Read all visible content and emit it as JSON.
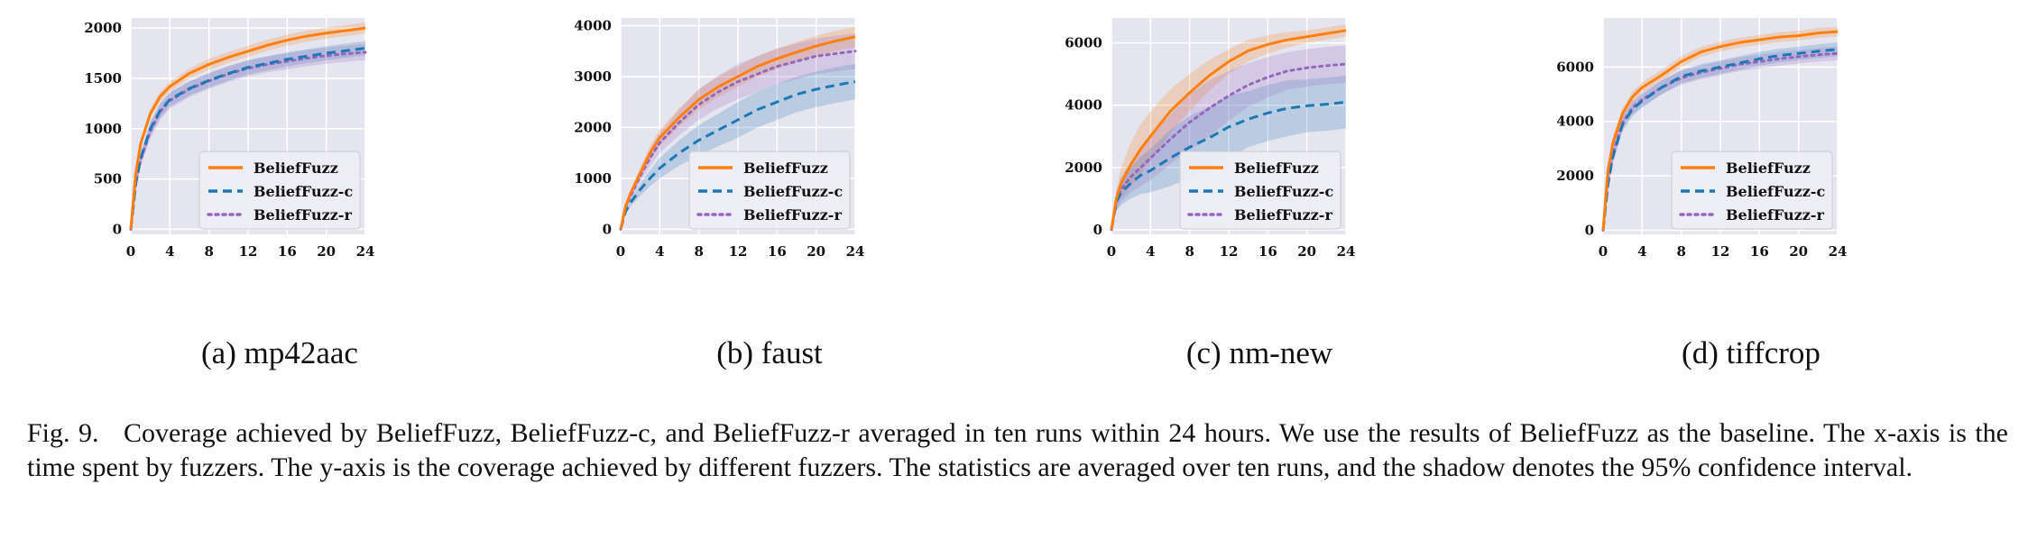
{
  "colors": {
    "plot_bg": "#e5e5ef",
    "grid": "#ffffff",
    "series": [
      "#ff7f0e",
      "#1f77b4",
      "#9467bd"
    ]
  },
  "legend": [
    "BeliefFuzz",
    "BeliefFuzz-c",
    "BeliefFuzz-r"
  ],
  "chart_data": [
    {
      "type": "line",
      "xlim": [
        0,
        24
      ],
      "ylim": [
        -50,
        2100
      ],
      "xticks": [
        0,
        4,
        8,
        12,
        16,
        20,
        24
      ],
      "yticks": [
        0,
        500,
        1000,
        1500,
        2000
      ],
      "xtick_labels": [
        "0",
        "4",
        "8",
        "12",
        "16",
        "20",
        "24"
      ],
      "ytick_labels": [
        "0",
        "500",
        "1000",
        "1500",
        "2000"
      ],
      "x": [
        0,
        0.5,
        1,
        2,
        3,
        4,
        6,
        8,
        10,
        12,
        14,
        16,
        18,
        20,
        22,
        24
      ],
      "legend_position": "lower-right",
      "grid": true,
      "series": [
        {
          "name": "BeliefFuzz",
          "values": [
            0,
            550,
            850,
            1150,
            1320,
            1420,
            1550,
            1640,
            1710,
            1770,
            1830,
            1880,
            1920,
            1950,
            1975,
            2000
          ],
          "ci": [
            0,
            40,
            50,
            50,
            50,
            50,
            50,
            55,
            55,
            55,
            55,
            55,
            55,
            55,
            55,
            55
          ]
        },
        {
          "name": "BeliefFuzz-c",
          "values": [
            0,
            450,
            700,
            1000,
            1180,
            1290,
            1400,
            1480,
            1550,
            1610,
            1650,
            1690,
            1720,
            1750,
            1775,
            1800
          ],
          "ci": [
            0,
            40,
            60,
            70,
            70,
            70,
            70,
            70,
            70,
            70,
            70,
            70,
            70,
            70,
            70,
            70
          ]
        },
        {
          "name": "BeliefFuzz-r",
          "values": [
            0,
            450,
            690,
            980,
            1170,
            1280,
            1395,
            1475,
            1545,
            1600,
            1640,
            1670,
            1700,
            1725,
            1745,
            1760
          ],
          "ci": [
            0,
            40,
            60,
            80,
            80,
            80,
            80,
            80,
            80,
            80,
            80,
            80,
            80,
            80,
            80,
            80
          ]
        }
      ]
    },
    {
      "type": "line",
      "xlim": [
        0,
        24
      ],
      "ylim": [
        -100,
        4150
      ],
      "xticks": [
        0,
        4,
        8,
        12,
        16,
        20,
        24
      ],
      "yticks": [
        0,
        1000,
        2000,
        3000,
        4000
      ],
      "xtick_labels": [
        "0",
        "4",
        "8",
        "12",
        "16",
        "20",
        "24"
      ],
      "ytick_labels": [
        "0",
        "1000",
        "2000",
        "3000",
        "4000"
      ],
      "x": [
        0,
        0.5,
        1,
        2,
        3,
        4,
        6,
        8,
        10,
        12,
        14,
        16,
        18,
        20,
        22,
        24
      ],
      "legend_position": "lower-right",
      "grid": true,
      "series": [
        {
          "name": "BeliefFuzz",
          "values": [
            0,
            450,
            700,
            1100,
            1500,
            1800,
            2200,
            2550,
            2800,
            3000,
            3200,
            3350,
            3480,
            3600,
            3700,
            3780
          ],
          "ci": [
            0,
            60,
            80,
            120,
            140,
            160,
            180,
            200,
            200,
            200,
            200,
            200,
            200,
            200,
            200,
            200
          ]
        },
        {
          "name": "BeliefFuzz-c",
          "values": [
            0,
            350,
            520,
            780,
            1000,
            1200,
            1500,
            1750,
            1950,
            2150,
            2350,
            2500,
            2650,
            2750,
            2830,
            2900
          ],
          "ci": [
            0,
            60,
            80,
            120,
            160,
            200,
            250,
            300,
            320,
            350,
            350,
            350,
            350,
            350,
            350,
            350
          ]
        },
        {
          "name": "BeliefFuzz-r",
          "values": [
            0,
            430,
            650,
            1050,
            1400,
            1700,
            2100,
            2450,
            2700,
            2900,
            3050,
            3200,
            3300,
            3400,
            3450,
            3500
          ],
          "ci": [
            0,
            60,
            80,
            120,
            160,
            200,
            250,
            300,
            320,
            350,
            350,
            350,
            350,
            350,
            350,
            350
          ]
        }
      ]
    },
    {
      "type": "line",
      "xlim": [
        0,
        24
      ],
      "ylim": [
        -150,
        6800
      ],
      "xticks": [
        0,
        4,
        8,
        12,
        16,
        20,
        24
      ],
      "yticks": [
        0,
        2000,
        4000,
        6000
      ],
      "xtick_labels": [
        "0",
        "4",
        "8",
        "12",
        "16",
        "20",
        "24"
      ],
      "ytick_labels": [
        "0",
        "2000",
        "4000",
        "6000"
      ],
      "x": [
        0,
        0.5,
        1,
        2,
        3,
        4,
        6,
        8,
        10,
        12,
        14,
        16,
        18,
        20,
        22,
        24
      ],
      "legend_position": "lower-right",
      "grid": true,
      "series": [
        {
          "name": "BeliefFuzz",
          "values": [
            0,
            1000,
            1500,
            2100,
            2600,
            3000,
            3800,
            4400,
            4950,
            5400,
            5750,
            5950,
            6100,
            6200,
            6300,
            6400
          ],
          "ci": [
            0,
            300,
            500,
            700,
            800,
            800,
            700,
            600,
            500,
            400,
            350,
            300,
            250,
            200,
            200,
            200
          ]
        },
        {
          "name": "BeliefFuzz-c",
          "values": [
            0,
            900,
            1200,
            1500,
            1750,
            1900,
            2300,
            2650,
            2950,
            3300,
            3550,
            3750,
            3900,
            3980,
            4030,
            4100
          ],
          "ci": [
            0,
            300,
            400,
            500,
            600,
            700,
            900,
            1000,
            1000,
            1000,
            900,
            900,
            900,
            850,
            850,
            850
          ]
        },
        {
          "name": "BeliefFuzz-r",
          "values": [
            0,
            900,
            1300,
            1700,
            2000,
            2300,
            2900,
            3450,
            3900,
            4300,
            4650,
            4900,
            5100,
            5200,
            5270,
            5320
          ],
          "ci": [
            0,
            300,
            400,
            500,
            600,
            700,
            800,
            900,
            900,
            800,
            700,
            650,
            600,
            600,
            600,
            600
          ]
        }
      ]
    },
    {
      "type": "line",
      "xlim": [
        0,
        24
      ],
      "ylim": [
        -150,
        7800
      ],
      "xticks": [
        0,
        4,
        8,
        12,
        16,
        20,
        24
      ],
      "yticks": [
        0,
        2000,
        4000,
        6000
      ],
      "xtick_labels": [
        "0",
        "4",
        "8",
        "12",
        "16",
        "20",
        "24"
      ],
      "ytick_labels": [
        "0",
        "2000",
        "4000",
        "6000"
      ],
      "x": [
        0,
        0.5,
        1,
        2,
        3,
        4,
        6,
        8,
        10,
        12,
        14,
        16,
        18,
        20,
        22,
        24
      ],
      "legend_position": "lower-right",
      "grid": true,
      "series": [
        {
          "name": "BeliefFuzz",
          "values": [
            0,
            2200,
            3200,
            4300,
            4900,
            5250,
            5700,
            6200,
            6550,
            6750,
            6900,
            7000,
            7100,
            7150,
            7250,
            7300
          ],
          "ci": [
            0,
            200,
            250,
            200,
            200,
            200,
            200,
            200,
            180,
            180,
            180,
            180,
            180,
            180,
            180,
            180
          ]
        },
        {
          "name": "BeliefFuzz-c",
          "values": [
            0,
            1700,
            2700,
            3900,
            4450,
            4750,
            5250,
            5650,
            5850,
            6000,
            6150,
            6300,
            6420,
            6500,
            6580,
            6650
          ],
          "ci": [
            0,
            200,
            250,
            250,
            250,
            250,
            250,
            250,
            250,
            250,
            250,
            250,
            250,
            250,
            250,
            250
          ]
        },
        {
          "name": "BeliefFuzz-r",
          "values": [
            0,
            1800,
            2800,
            3950,
            4500,
            4800,
            5250,
            5600,
            5800,
            5950,
            6100,
            6200,
            6300,
            6380,
            6450,
            6500
          ],
          "ci": [
            0,
            200,
            250,
            250,
            250,
            250,
            250,
            250,
            250,
            250,
            250,
            250,
            250,
            250,
            250,
            250
          ]
        }
      ]
    }
  ],
  "subcaptions": [
    "(a) mp42aac",
    "(b) faust",
    "(c) nm-new",
    "(d) tiffcrop"
  ],
  "caption": {
    "figure_label": "Fig. 9.",
    "text": "Coverage achieved by BeliefFuzz, BeliefFuzz-c, and BeliefFuzz-r averaged in ten runs within 24 hours. We use the results of BeliefFuzz as the baseline. The x-axis is the time spent by fuzzers. The y-axis is the coverage achieved by different fuzzers. The statistics are averaged over ten runs, and the shadow denotes the 95% confidence interval."
  }
}
